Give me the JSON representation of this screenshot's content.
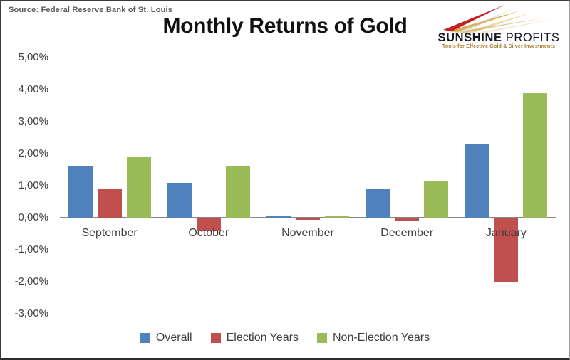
{
  "source": "Source: Federal Reserve Bank of St. Louis",
  "title": "Monthly Returns of Gold",
  "logo": {
    "name_part1": "SUNSHINE",
    "name_part2": " PROFITS",
    "tagline": "Tools for Effective Gold & Silver Investments",
    "ray_colors": {
      "red": "#c32026",
      "gold": "#dba93f",
      "beige": "#e3cf9e"
    }
  },
  "chart_data": {
    "type": "bar",
    "title": "Monthly Returns of Gold",
    "categories": [
      "September",
      "October",
      "November",
      "December",
      "January"
    ],
    "series": [
      {
        "name": "Overall",
        "color": "#4F81BD",
        "values": [
          1.6,
          1.1,
          0.04,
          0.9,
          2.3
        ]
      },
      {
        "name": "Election Years",
        "color": "#C0504D",
        "values": [
          0.9,
          -0.4,
          -0.07,
          -0.12,
          -2.0
        ]
      },
      {
        "name": "Non-Election Years",
        "color": "#9BBB59",
        "values": [
          1.9,
          1.6,
          0.07,
          1.15,
          3.9
        ]
      }
    ],
    "ylabel": "",
    "xlabel": "",
    "y_ticks": [
      "5,00%",
      "4,00%",
      "3,00%",
      "2,00%",
      "1,00%",
      "0,00%",
      "-1,00%",
      "-2,00%",
      "-3,00%"
    ],
    "ylim": [
      -3,
      5
    ],
    "y_major_unit": 1,
    "grid": true,
    "legend_position": "bottom",
    "value_format": "percent_comma_decimal",
    "colors": {
      "gridline": "#c6c6c6",
      "zeroline": "#868686",
      "axis_text": "#3f3f3f"
    }
  }
}
